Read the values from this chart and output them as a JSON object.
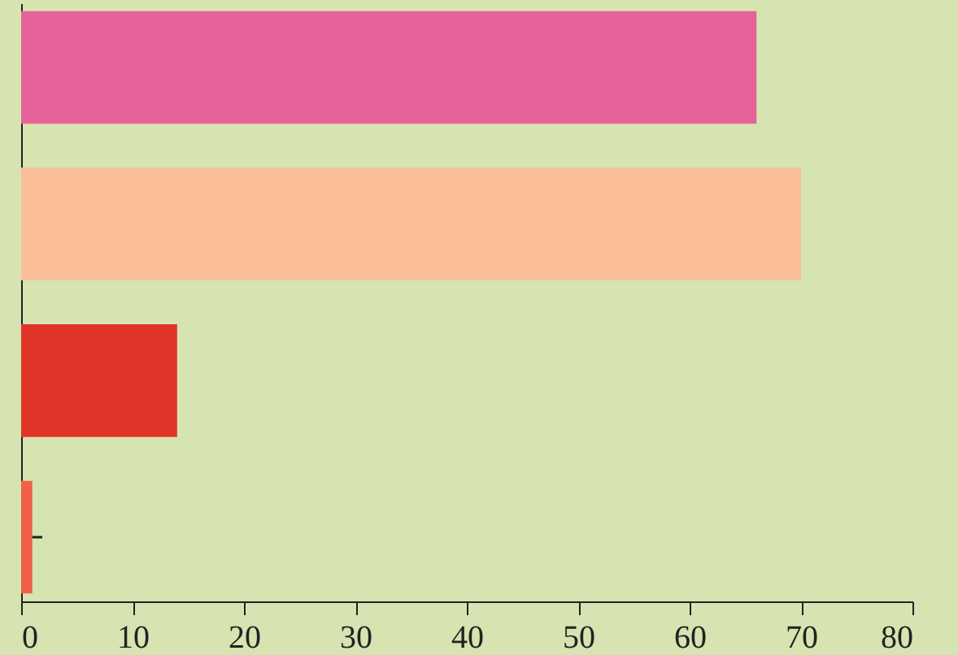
{
  "chart_data": {
    "type": "bar",
    "orientation": "horizontal",
    "categories": [
      null,
      null,
      null,
      null
    ],
    "values": [
      66,
      70,
      14,
      1
    ],
    "colors": [
      "#e6629a",
      "#fabf98",
      "#e03428",
      "#f06048"
    ],
    "errors": [
      null,
      null,
      null,
      [
        1,
        1.9
      ]
    ],
    "xlim": [
      0,
      80
    ],
    "xticks": [
      0,
      10,
      20,
      30,
      40,
      50,
      60,
      70,
      80
    ],
    "grid": false
  }
}
